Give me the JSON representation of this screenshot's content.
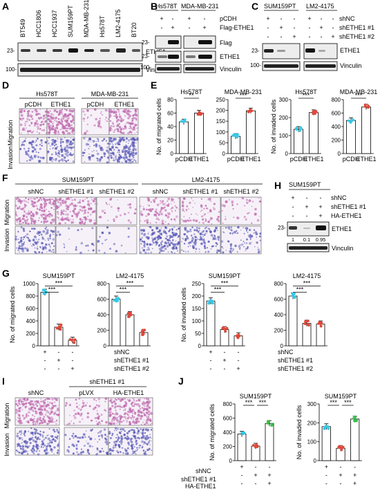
{
  "panels": {
    "A": {
      "letter": "A",
      "cell_lines": [
        "BT549",
        "HCC1806",
        "HCC1937",
        "SUM159PT",
        "MDA-MB-231",
        "Hs578T",
        "LM2-4175",
        "BT20"
      ],
      "markers": [
        "23-",
        "100-"
      ],
      "blots": [
        "ETHE1",
        "Vinculin"
      ]
    },
    "B": {
      "letter": "B",
      "cell_lines": [
        "Hs578T",
        "MDA-MB-231"
      ],
      "rows": [
        {
          "label": "pCDH",
          "signs": [
            "+",
            "-",
            "+",
            "-"
          ]
        },
        {
          "label": "Flag-ETHE1",
          "signs": [
            "-",
            "+",
            "-",
            "+"
          ]
        }
      ],
      "markers": [
        "23-",
        "23-",
        "100-"
      ],
      "blots": [
        "Flag",
        "ETHE1",
        "Vinculin"
      ]
    },
    "C": {
      "letter": "C",
      "cell_lines": [
        "SUM159PT",
        "LM2-4175"
      ],
      "rows": [
        {
          "label": "shNC",
          "signs": [
            "+",
            "-",
            "-",
            "+",
            "-",
            "-"
          ]
        },
        {
          "label": "shETHE1 #1",
          "signs": [
            "-",
            "+",
            "-",
            "-",
            "+",
            "-"
          ]
        },
        {
          "label": "shETHE1 #2",
          "signs": [
            "-",
            "-",
            "+",
            "-",
            "-",
            "+"
          ]
        }
      ],
      "markers": [
        "23-",
        "100-"
      ],
      "blots": [
        "ETHE1",
        "Vinculin"
      ]
    },
    "D": {
      "letter": "D",
      "cell_lines": [
        "Hs578T",
        "MDA-MB-231"
      ],
      "conditions": [
        "pCDH",
        "ETHE1",
        "pCDH",
        "ETHE1"
      ],
      "row_labels": [
        "Migration",
        "Invasion"
      ]
    },
    "E": {
      "letter": "E",
      "charts": [
        {
          "title": "Hs578T",
          "ylabel": "No. of migrated cells",
          "yticks": [
            "0",
            "20",
            "40",
            "60",
            "80"
          ],
          "categories": [
            "pCDH",
            "ETHE1"
          ],
          "values": [
            47,
            60
          ],
          "sig": "**"
        },
        {
          "title": "MDA-MB-231",
          "ylabel": "",
          "yticks": [
            "0",
            "50",
            "100",
            "150",
            "200",
            "250"
          ],
          "categories": [
            "pCDH",
            "ETHE1"
          ],
          "values": [
            80,
            198
          ],
          "sig": "***"
        },
        {
          "title": "Hs578T",
          "ylabel": "No. of invaded cells",
          "yticks": [
            "0",
            "100",
            "200",
            "300"
          ],
          "categories": [
            "pCDH",
            "ETHE1"
          ],
          "values": [
            135,
            228
          ],
          "sig": "***"
        },
        {
          "title": "MDA-MB-231",
          "ylabel": "",
          "yticks": [
            "0",
            "200",
            "400",
            "600",
            "800"
          ],
          "categories": [
            "pCDH",
            "ETHE1"
          ],
          "values": [
            490,
            690
          ],
          "sig": "***"
        }
      ]
    },
    "F": {
      "letter": "F",
      "cell_lines": [
        "SUM159PT",
        "LM2-4175"
      ],
      "conditions": [
        "shNC",
        "shETHE1 #1",
        "shETHE1 #2",
        "shNC",
        "shETHE1 #1",
        "shETHE1 #2"
      ],
      "row_labels": [
        "Migration",
        "Invasion"
      ]
    },
    "G": {
      "letter": "G",
      "charts": [
        {
          "title": "SUM159PT",
          "ylabel": "No. of migrated cells",
          "yticks": [
            "0",
            "200",
            "400",
            "600",
            "800",
            "1000"
          ],
          "values": [
            860,
            300,
            90
          ],
          "sig": [
            "***",
            "***"
          ]
        },
        {
          "title": "LM2-4175",
          "ylabel": "",
          "yticks": [
            "0",
            "200",
            "400",
            "600",
            "800"
          ],
          "values": [
            600,
            400,
            170
          ],
          "sig": [
            "***",
            "***"
          ]
        },
        {
          "title": "SUM159PT",
          "ylabel": "No. of invaded cells",
          "yticks": [
            "0",
            "50",
            "100",
            "150",
            "200",
            "250"
          ],
          "values": [
            180,
            65,
            40
          ],
          "sig": [
            "***",
            "***"
          ]
        },
        {
          "title": "LM2-4175",
          "ylabel": "",
          "yticks": [
            "0",
            "200",
            "400",
            "600",
            "800"
          ],
          "values": [
            640,
            290,
            280
          ],
          "sig": [
            "***",
            "***"
          ]
        }
      ],
      "rows": [
        {
          "label": "shNC",
          "signs": [
            "+",
            "-",
            "-"
          ]
        },
        {
          "label": "shETHE1 #1",
          "signs": [
            "-",
            "+",
            "-"
          ]
        },
        {
          "label": "shETHE1 #2",
          "signs": [
            "-",
            "-",
            "+"
          ]
        }
      ]
    },
    "H": {
      "letter": "H",
      "cell_line": "SUM159PT",
      "rows": [
        {
          "label": "shNC",
          "signs": [
            "+",
            "-",
            "-"
          ]
        },
        {
          "label": "shETHE1 #1",
          "signs": [
            "-",
            "+",
            "+"
          ]
        },
        {
          "label": "HA-ETHE1",
          "signs": [
            "-",
            "-",
            "+"
          ]
        }
      ],
      "markers": [
        "23-"
      ],
      "quant": [
        "1",
        "0.1",
        "0.95"
      ],
      "blots": [
        "ETHE1",
        "Vinculin"
      ]
    },
    "I": {
      "letter": "I",
      "group_label": "shETHE1 #1",
      "conditions": [
        "shNC",
        "pLVX",
        "HA-ETHE1"
      ],
      "row_labels": [
        "Migration",
        "Invasion"
      ]
    },
    "J": {
      "letter": "J",
      "charts": [
        {
          "title": "SUM159PT",
          "ylabel": "No. of migrated cells",
          "yticks": [
            "0",
            "200",
            "400",
            "600",
            "800"
          ],
          "values": [
            375,
            205,
            525
          ],
          "sig": [
            "***",
            "***"
          ]
        },
        {
          "title": "SUM159PT",
          "ylabel": "No. of invaded cells",
          "yticks": [
            "0",
            "100",
            "200",
            "300"
          ],
          "values": [
            180,
            65,
            220
          ],
          "sig": [
            "***",
            "***"
          ]
        }
      ],
      "rows": [
        {
          "label": "shNC",
          "signs": [
            "+",
            "-",
            "-"
          ]
        },
        {
          "label": "shETHE1 #1",
          "signs": [
            "-",
            "+",
            "+"
          ]
        },
        {
          "label": "HA-ETHE1",
          "signs": [
            "-",
            "-",
            "+"
          ]
        }
      ]
    }
  },
  "colors": {
    "cyan": "#35c9e6",
    "red": "#e0483a",
    "green": "#36c348",
    "micro_migration": "#c06fb1",
    "micro_invasion": "#5d5fb8"
  },
  "chart_data": [
    {
      "type": "bar",
      "title": "Hs578T",
      "ylabel": "No. of migrated cells",
      "categories": [
        "pCDH",
        "ETHE1"
      ],
      "values": [
        47,
        60
      ],
      "ylim": [
        0,
        80
      ]
    },
    {
      "type": "bar",
      "title": "MDA-MB-231",
      "categories": [
        "pCDH",
        "ETHE1"
      ],
      "values": [
        80,
        198
      ],
      "ylim": [
        0,
        250
      ]
    },
    {
      "type": "bar",
      "title": "Hs578T",
      "ylabel": "No. of invaded cells",
      "categories": [
        "pCDH",
        "ETHE1"
      ],
      "values": [
        135,
        228
      ],
      "ylim": [
        0,
        300
      ]
    },
    {
      "type": "bar",
      "title": "MDA-MB-231",
      "categories": [
        "pCDH",
        "ETHE1"
      ],
      "values": [
        490,
        690
      ],
      "ylim": [
        0,
        800
      ]
    },
    {
      "type": "bar",
      "title": "SUM159PT",
      "ylabel": "No. of migrated cells",
      "categories": [
        "shNC",
        "shETHE1 #1",
        "shETHE1 #2"
      ],
      "values": [
        860,
        300,
        90
      ],
      "ylim": [
        0,
        1000
      ]
    },
    {
      "type": "bar",
      "title": "LM2-4175",
      "categories": [
        "shNC",
        "shETHE1 #1",
        "shETHE1 #2"
      ],
      "values": [
        600,
        400,
        170
      ],
      "ylim": [
        0,
        800
      ]
    },
    {
      "type": "bar",
      "title": "SUM159PT",
      "ylabel": "No. of invaded cells",
      "categories": [
        "shNC",
        "shETHE1 #1",
        "shETHE1 #2"
      ],
      "values": [
        180,
        65,
        40
      ],
      "ylim": [
        0,
        250
      ]
    },
    {
      "type": "bar",
      "title": "LM2-4175",
      "categories": [
        "shNC",
        "shETHE1 #1",
        "shETHE1 #2"
      ],
      "values": [
        640,
        290,
        280
      ],
      "ylim": [
        0,
        800
      ]
    },
    {
      "type": "bar",
      "title": "SUM159PT",
      "ylabel": "No. of migrated cells",
      "categories": [
        "shNC",
        "shETHE1 #1",
        "HA-ETHE1"
      ],
      "values": [
        375,
        205,
        525
      ],
      "ylim": [
        0,
        800
      ]
    },
    {
      "type": "bar",
      "title": "SUM159PT",
      "ylabel": "No. of invaded cells",
      "categories": [
        "shNC",
        "shETHE1 #1",
        "HA-ETHE1"
      ],
      "values": [
        180,
        65,
        220
      ],
      "ylim": [
        0,
        300
      ]
    }
  ]
}
